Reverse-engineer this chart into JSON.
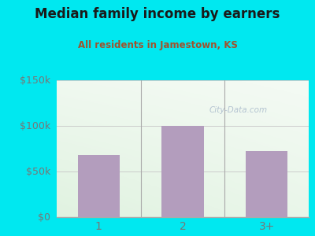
{
  "title": "Median family income by earners",
  "subtitle": "All residents in Jamestown, KS",
  "categories": [
    "1",
    "2",
    "3+"
  ],
  "values": [
    68000,
    100000,
    72000
  ],
  "bar_color": "#b39dbd",
  "title_color": "#1a1a1a",
  "subtitle_color": "#a0522d",
  "background_outer": "#00e8f0",
  "ylim": [
    0,
    150000
  ],
  "yticks": [
    0,
    50000,
    100000,
    150000
  ],
  "ytick_labels": [
    "$0",
    "$50k",
    "$100k",
    "$150k"
  ],
  "watermark": "City-Data.com",
  "watermark_color": "#aabbcc",
  "grid_color": "#cccccc",
  "axis_color": "#aaaaaa",
  "tick_color": "#777777"
}
